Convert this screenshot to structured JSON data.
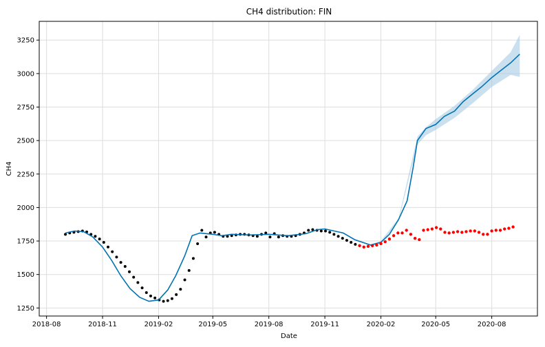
{
  "chart_data": {
    "type": "line",
    "title": "CH4 distribution: FIN",
    "xlabel": "Date",
    "ylabel": "CH4",
    "grid": true,
    "xlim": [
      "2018-07-20",
      "2020-10-15"
    ],
    "ylim": [
      1190,
      3390
    ],
    "x_ticks": [
      "2018-08",
      "2018-11",
      "2019-02",
      "2019-05",
      "2019-08",
      "2019-11",
      "2020-02",
      "2020-05",
      "2020-08"
    ],
    "y_ticks": [
      1250,
      1500,
      1750,
      2000,
      2250,
      2500,
      2750,
      3000,
      3250
    ],
    "colors": {
      "forecast": "#0072B2",
      "band": "#a6cbe3",
      "observed": "#000000",
      "actual_future": "#ff0000"
    },
    "series": [
      {
        "role": "forecast",
        "x": [
          "2018-09-01",
          "2018-09-16",
          "2018-10-01",
          "2018-10-16",
          "2018-11-01",
          "2018-11-16",
          "2018-12-01",
          "2018-12-16",
          "2019-01-01",
          "2019-01-16",
          "2019-02-01",
          "2019-02-16",
          "2019-03-01",
          "2019-03-16",
          "2019-03-28",
          "2019-04-10",
          "2019-05-01",
          "2019-05-16",
          "2019-06-01",
          "2019-07-01",
          "2019-08-01",
          "2019-09-01",
          "2019-10-01",
          "2019-10-20",
          "2019-11-01",
          "2019-12-01",
          "2019-12-20",
          "2020-01-15",
          "2020-02-01",
          "2020-02-15",
          "2020-03-01",
          "2020-03-15",
          "2020-03-25",
          "2020-04-01",
          "2020-04-15",
          "2020-05-01",
          "2020-05-15",
          "2020-06-01",
          "2020-06-15",
          "2020-07-01",
          "2020-07-15",
          "2020-08-01",
          "2020-08-15",
          "2020-09-01",
          "2020-09-16"
        ],
        "y": [
          1810,
          1825,
          1820,
          1780,
          1705,
          1605,
          1490,
          1395,
          1330,
          1300,
          1310,
          1385,
          1490,
          1640,
          1790,
          1810,
          1800,
          1790,
          1800,
          1795,
          1800,
          1790,
          1805,
          1835,
          1840,
          1810,
          1760,
          1720,
          1740,
          1800,
          1910,
          2050,
          2300,
          2500,
          2590,
          2620,
          2680,
          2720,
          2790,
          2850,
          2900,
          2970,
          3020,
          3080,
          3145
        ]
      },
      {
        "role": "band",
        "x": [
          "2020-01-15",
          "2020-02-01",
          "2020-03-01",
          "2020-04-01",
          "2020-04-15",
          "2020-05-01",
          "2020-06-01",
          "2020-07-01",
          "2020-08-01",
          "2020-09-01",
          "2020-09-16"
        ],
        "upper": [
          1725,
          1750,
          1920,
          2530,
          2600,
          2660,
          2760,
          2880,
          3020,
          3160,
          3290
        ],
        "lower": [
          1715,
          1730,
          1900,
          2470,
          2540,
          2580,
          2670,
          2780,
          2900,
          2990,
          2975
        ]
      },
      {
        "role": "observed",
        "x": [
          "2018-09-01",
          "2018-09-08",
          "2018-09-15",
          "2018-09-22",
          "2018-09-29",
          "2018-10-06",
          "2018-10-13",
          "2018-10-20",
          "2018-10-27",
          "2018-11-03",
          "2018-11-10",
          "2018-11-17",
          "2018-11-24",
          "2018-12-01",
          "2018-12-08",
          "2018-12-15",
          "2018-12-22",
          "2018-12-29",
          "2019-01-05",
          "2019-01-12",
          "2019-01-19",
          "2019-01-26",
          "2019-02-02",
          "2019-02-09",
          "2019-02-16",
          "2019-02-23",
          "2019-03-02",
          "2019-03-09",
          "2019-03-16",
          "2019-03-23",
          "2019-03-30",
          "2019-04-06",
          "2019-04-13",
          "2019-04-20",
          "2019-04-27",
          "2019-05-04",
          "2019-05-11",
          "2019-05-18",
          "2019-05-25",
          "2019-06-01",
          "2019-06-08",
          "2019-06-15",
          "2019-06-22",
          "2019-06-29",
          "2019-07-06",
          "2019-07-13",
          "2019-07-20",
          "2019-07-27",
          "2019-08-03",
          "2019-08-10",
          "2019-08-17",
          "2019-08-24",
          "2019-08-31",
          "2019-09-07",
          "2019-09-14",
          "2019-09-21",
          "2019-09-28",
          "2019-10-05",
          "2019-10-12",
          "2019-10-19",
          "2019-10-26",
          "2019-11-02",
          "2019-11-09",
          "2019-11-16",
          "2019-11-23",
          "2019-11-30",
          "2019-12-07",
          "2019-12-14",
          "2019-12-21"
        ],
        "y": [
          1800,
          1810,
          1815,
          1820,
          1825,
          1818,
          1800,
          1785,
          1765,
          1740,
          1705,
          1670,
          1630,
          1590,
          1560,
          1520,
          1480,
          1440,
          1400,
          1365,
          1340,
          1325,
          1310,
          1300,
          1305,
          1320,
          1350,
          1390,
          1460,
          1530,
          1620,
          1730,
          1830,
          1780,
          1810,
          1815,
          1800,
          1785,
          1785,
          1790,
          1795,
          1800,
          1800,
          1795,
          1790,
          1785,
          1800,
          1810,
          1780,
          1805,
          1780,
          1790,
          1785,
          1785,
          1790,
          1800,
          1810,
          1830,
          1835,
          1830,
          1825,
          1825,
          1815,
          1800,
          1785,
          1770,
          1755,
          1740,
          1725
        ]
      },
      {
        "role": "actual_future",
        "x": [
          "2019-12-28",
          "2020-01-04",
          "2020-01-11",
          "2020-01-18",
          "2020-01-25",
          "2020-02-01",
          "2020-02-08",
          "2020-02-15",
          "2020-02-22",
          "2020-02-29",
          "2020-03-07",
          "2020-03-14",
          "2020-03-21",
          "2020-03-28",
          "2020-04-04",
          "2020-04-11",
          "2020-04-18",
          "2020-04-25",
          "2020-05-02",
          "2020-05-09",
          "2020-05-16",
          "2020-05-23",
          "2020-05-30",
          "2020-06-06",
          "2020-06-13",
          "2020-06-20",
          "2020-06-27",
          "2020-07-04",
          "2020-07-11",
          "2020-07-18",
          "2020-07-25",
          "2020-08-01",
          "2020-08-08",
          "2020-08-15",
          "2020-08-22",
          "2020-08-29",
          "2020-09-05"
        ],
        "y": [
          1715,
          1705,
          1710,
          1715,
          1720,
          1730,
          1745,
          1765,
          1790,
          1810,
          1810,
          1830,
          1800,
          1770,
          1760,
          1830,
          1835,
          1840,
          1850,
          1840,
          1815,
          1810,
          1815,
          1820,
          1815,
          1820,
          1825,
          1825,
          1815,
          1800,
          1800,
          1825,
          1830,
          1830,
          1840,
          1845,
          1855
        ]
      }
    ]
  }
}
